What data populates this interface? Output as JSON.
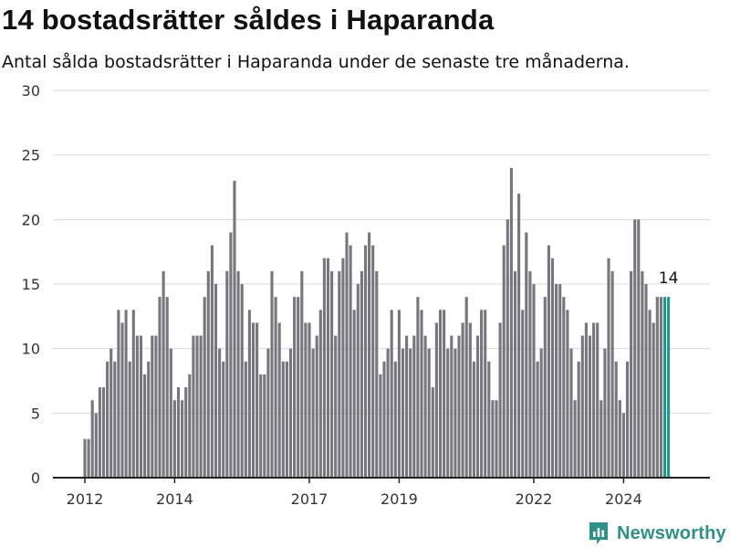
{
  "header": {
    "title": "14 bostadsrätter såldes i Haparanda",
    "subtitle": "Antal sålda bostadsrätter i Haparanda under de senaste tre månaderna."
  },
  "brand": {
    "name": "Newsworthy",
    "logo_icon": "newsworthy-logo-icon",
    "color": "#2f8f89"
  },
  "colors": {
    "bar": "#77767c",
    "highlight": "#1f9690",
    "grid": "#d9d9d9",
    "axis": "#222222"
  },
  "chart_data": {
    "type": "bar",
    "title": "14 bostadsrätter såldes i Haparanda",
    "subtitle": "Antal sålda bostadsrätter i Haparanda under de senaste tre månaderna.",
    "xlabel": "",
    "ylabel": "",
    "ylim": [
      0,
      30
    ],
    "yticks": [
      0,
      5,
      10,
      15,
      20,
      25,
      30
    ],
    "xticks": [
      "2012",
      "2014",
      "2017",
      "2019",
      "2022",
      "2024"
    ],
    "grid": true,
    "x_start": "2012-01",
    "highlight_label": "14",
    "values": [
      3,
      3,
      6,
      5,
      7,
      7,
      9,
      10,
      9,
      13,
      12,
      13,
      9,
      13,
      11,
      11,
      8,
      9,
      11,
      11,
      14,
      16,
      14,
      10,
      6,
      7,
      6,
      7,
      8,
      11,
      11,
      11,
      14,
      16,
      18,
      15,
      10,
      9,
      16,
      19,
      23,
      16,
      15,
      9,
      13,
      12,
      12,
      8,
      8,
      10,
      16,
      14,
      12,
      9,
      9,
      10,
      14,
      14,
      16,
      12,
      12,
      10,
      11,
      13,
      17,
      17,
      16,
      11,
      16,
      17,
      19,
      18,
      13,
      15,
      16,
      18,
      19,
      18,
      16,
      8,
      9,
      10,
      13,
      9,
      13,
      10,
      11,
      10,
      11,
      14,
      13,
      11,
      10,
      7,
      12,
      13,
      13,
      10,
      11,
      10,
      11,
      12,
      14,
      12,
      9,
      11,
      13,
      13,
      9,
      6,
      6,
      12,
      18,
      20,
      24,
      16,
      22,
      13,
      19,
      16,
      15,
      9,
      10,
      14,
      18,
      17,
      15,
      15,
      14,
      13,
      10,
      6,
      9,
      11,
      12,
      11,
      12,
      12,
      6,
      10,
      17,
      16,
      9,
      6,
      5,
      9,
      16,
      20,
      20,
      16,
      15,
      13,
      12,
      14,
      14
    ],
    "highlight_values": [
      14,
      14
    ]
  }
}
